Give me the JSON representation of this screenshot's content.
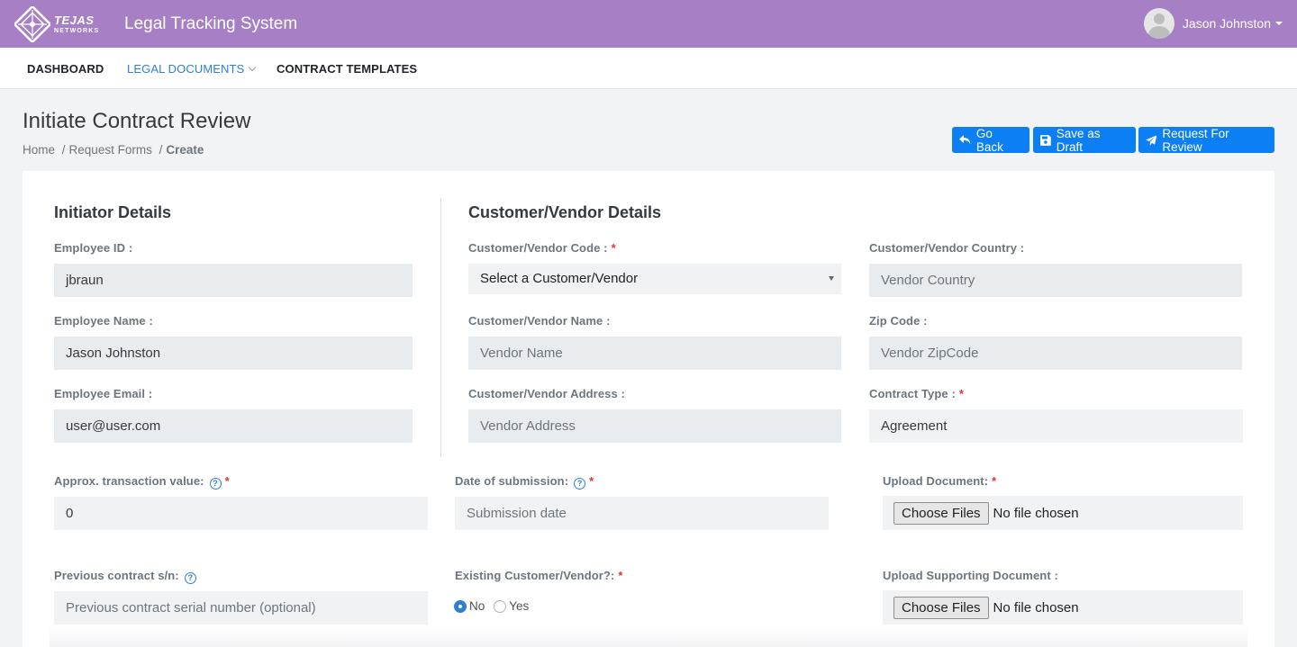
{
  "brand": {
    "logo_line1": "TEJAS",
    "logo_line2": "NETWORKS",
    "app_title": "Legal Tracking System"
  },
  "user": {
    "name": "Jason Johnston"
  },
  "nav": {
    "dashboard": "DASHBOARD",
    "legal_documents": "LEGAL DOCUMENTS",
    "contract_templates": "CONTRACT TEMPLATES"
  },
  "page": {
    "title": "Initiate Contract Review",
    "breadcrumb": {
      "home": "Home",
      "request_forms": "Request Forms",
      "current": "Create",
      "sep": "/"
    }
  },
  "actions": {
    "go_back": "Go Back",
    "save_draft": "Save as Draft",
    "request_review": "Request For Review"
  },
  "colors": {
    "topbar": "#a77fc4",
    "primary": "#0d7ff5",
    "required": "#e3342f",
    "link": "#2f7fd5"
  },
  "initiator": {
    "title": "Initiator Details",
    "employee_id_label": "Employee ID :",
    "employee_id": "jbraun",
    "employee_name_label": "Employee Name :",
    "employee_name": "Jason Johnston",
    "employee_email_label": "Employee Email :",
    "employee_email": "user@user.com"
  },
  "customer": {
    "title": "Customer/Vendor Details",
    "code_label": "Customer/Vendor Code :",
    "code_select": "Select a Customer/Vendor",
    "name_label": "Customer/Vendor Name :",
    "name_placeholder": "Vendor Name",
    "address_label": "Customer/Vendor Address :",
    "address_placeholder": "Vendor Address",
    "country_label": "Customer/Vendor Country :",
    "country_placeholder": "Vendor Country",
    "zip_label": "Zip Code :",
    "zip_placeholder": "Vendor ZipCode",
    "contract_type_label": "Contract Type :",
    "contract_type": "Agreement"
  },
  "transaction": {
    "approx_label": "Approx. transaction value:",
    "approx_value": "0",
    "date_label": "Date of submission:",
    "date_placeholder": "Submission date",
    "upload_label": "Upload Document:",
    "prev_label": "Previous contract s/n:",
    "prev_placeholder": "Previous contract serial number (optional)",
    "existing_label": "Existing Customer/Vendor?:",
    "radio_no": "No",
    "radio_yes": "Yes",
    "upload_support_label": "Upload Supporting Document :",
    "choose_files": "Choose Files",
    "no_file": "No file chosen",
    "required_mark": "*",
    "help_glyph": "?"
  }
}
